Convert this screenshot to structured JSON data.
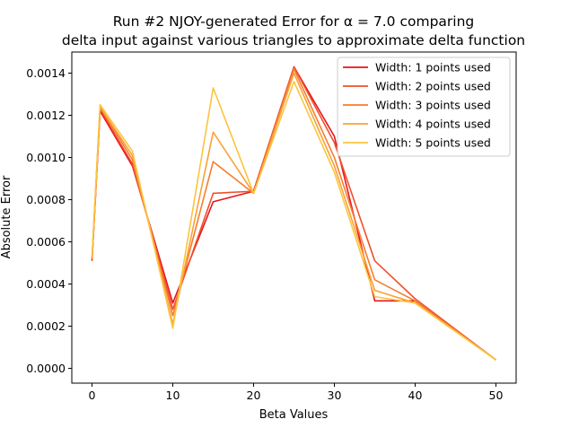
{
  "chart_data": {
    "type": "line",
    "title_line1": "Run #2 NJOY-generated Error for α = 7.0 comparing",
    "title_line2": "delta input against various triangles to approximate delta function",
    "xlabel": "Beta Values",
    "ylabel": "Absolute Error",
    "xlim": [
      -2.5,
      52.5
    ],
    "ylim": [
      -7e-05,
      0.0015
    ],
    "xticks": [
      0,
      10,
      20,
      30,
      40,
      50
    ],
    "xtick_labels": [
      "0",
      "10",
      "20",
      "30",
      "40",
      "50"
    ],
    "yticks": [
      0.0,
      0.0002,
      0.0004,
      0.0006,
      0.0008,
      0.001,
      0.0012,
      0.0014
    ],
    "ytick_labels": [
      "0.0000",
      "0.0002",
      "0.0004",
      "0.0006",
      "0.0008",
      "0.0010",
      "0.0012",
      "0.0014"
    ],
    "grid": false,
    "legend_position": "top-right",
    "x": [
      0,
      1,
      5,
      10,
      15,
      20,
      25,
      30,
      35,
      40,
      50
    ],
    "series": [
      {
        "name": "Width: 1 points used",
        "color": "#e8141c",
        "values": [
          0.00051,
          0.00122,
          0.00096,
          0.00031,
          0.00079,
          0.00084,
          0.00143,
          0.0011,
          0.00032,
          0.00032,
          4e-05
        ]
      },
      {
        "name": "Width: 2 points used",
        "color": "#f0502a",
        "values": [
          0.00051,
          0.00123,
          0.00097,
          0.00028,
          0.00083,
          0.00084,
          0.00143,
          0.00107,
          0.00051,
          0.00033,
          4e-05
        ]
      },
      {
        "name": "Width: 3 points used",
        "color": "#f57d30",
        "values": [
          0.00052,
          0.00124,
          0.00099,
          0.00025,
          0.00098,
          0.00083,
          0.00142,
          0.001,
          0.00042,
          0.00032,
          4e-05
        ]
      },
      {
        "name": "Width: 4 points used",
        "color": "#f9a137",
        "values": [
          0.00052,
          0.00124,
          0.00101,
          0.00021,
          0.00112,
          0.00083,
          0.0014,
          0.00096,
          0.00037,
          0.00031,
          4e-05
        ]
      },
      {
        "name": "Width: 5 points used",
        "color": "#fbc43e",
        "values": [
          0.00053,
          0.00125,
          0.00103,
          0.00019,
          0.00133,
          0.00083,
          0.00136,
          0.00093,
          0.00034,
          0.00031,
          4e-05
        ]
      }
    ]
  }
}
